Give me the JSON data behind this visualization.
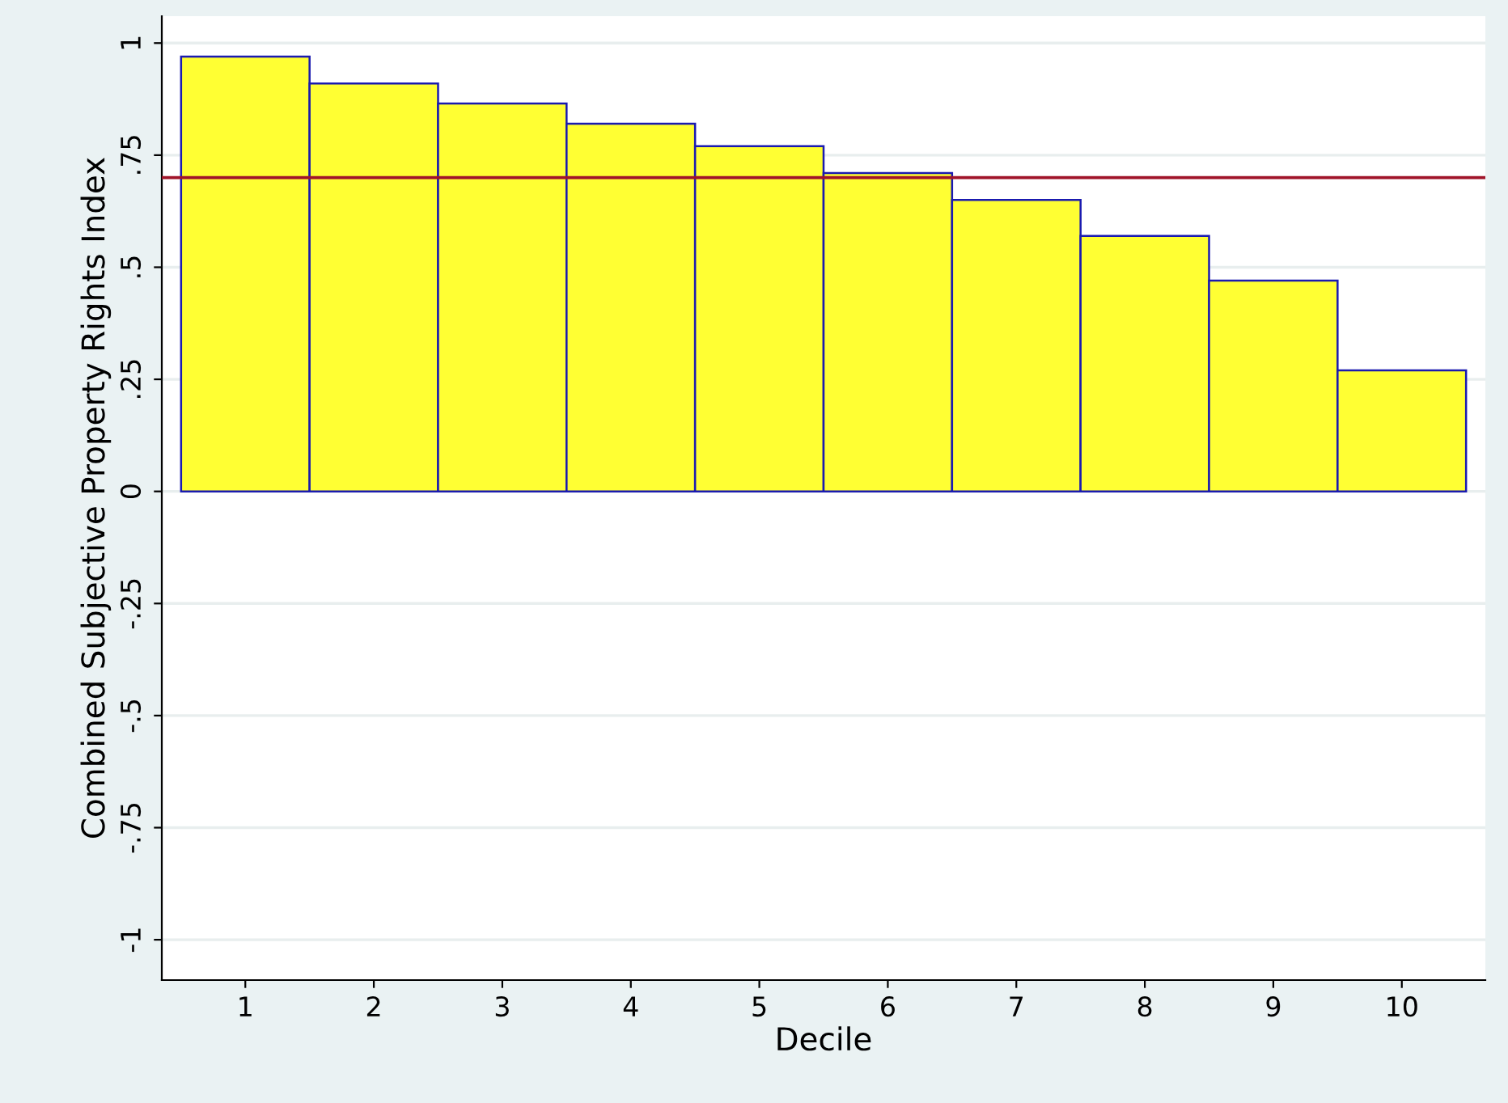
{
  "chart_data": {
    "type": "bar",
    "xlabel": "Decile",
    "ylabel": "Combined Subjective Property Rights Index",
    "x": [
      1,
      2,
      3,
      4,
      5,
      6,
      7,
      8,
      9,
      10
    ],
    "values": [
      0.97,
      0.91,
      0.865,
      0.82,
      0.77,
      0.71,
      0.65,
      0.57,
      0.47,
      0.27
    ],
    "color": "#ffff33",
    "xlim": [
      0.35,
      10.65
    ],
    "xticks": [
      1,
      2,
      3,
      4,
      5,
      6,
      7,
      8,
      9,
      10
    ],
    "ylim": [
      -1.09,
      1.06
    ],
    "yticks": [
      {
        "value": -1,
        "label": "-1"
      },
      {
        "value": -0.75,
        "label": "-.75"
      },
      {
        "value": -0.5,
        "label": "-.5"
      },
      {
        "value": -0.25,
        "label": "-.25"
      },
      {
        "value": 0,
        "label": "0"
      },
      {
        "value": 0.25,
        "label": ".25"
      },
      {
        "value": 0.5,
        "label": ".5"
      },
      {
        "value": 0.75,
        "label": ".75"
      },
      {
        "value": 1,
        "label": "1"
      }
    ],
    "grid": "y",
    "ref_lines": [
      {
        "axis": "y",
        "value": 0.7,
        "color": "#a0142a"
      }
    ]
  }
}
